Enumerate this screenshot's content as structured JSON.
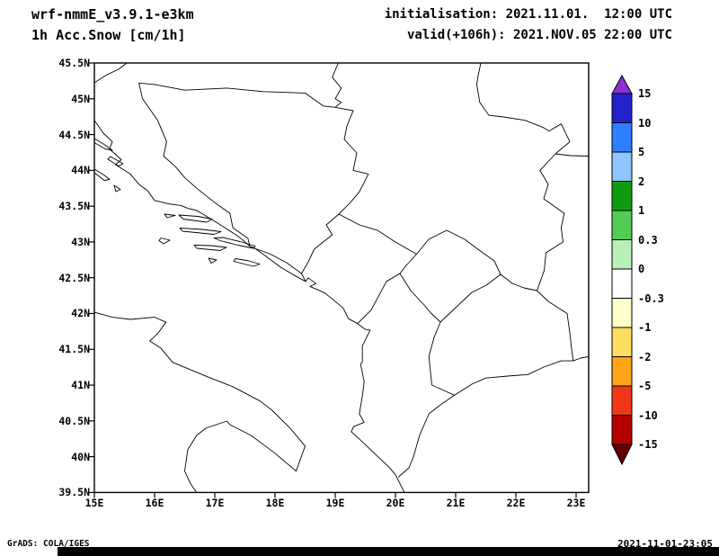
{
  "header": {
    "model_line": "wrf-nmmE_v3.9.1-e3km",
    "field_line": "1h Acc.Snow [cm/1h]",
    "init_line": "initialisation: 2021.11.01.  12:00 UTC",
    "valid_line": "valid(+106h): 2021.NOV.05 22:00 UTC"
  },
  "map": {
    "lat_labels": [
      "45.5N",
      "45N",
      "44.5N",
      "44N",
      "43.5N",
      "43N",
      "42.5N",
      "42N",
      "41.5N",
      "41N",
      "40.5N",
      "40N",
      "39.5N"
    ],
    "lon_labels": [
      "15E",
      "16E",
      "17E",
      "18E",
      "19E",
      "20E",
      "21E",
      "22E",
      "23E"
    ]
  },
  "colorbar": {
    "labels": [
      "15",
      "10",
      "5",
      "2",
      "1",
      "0.3",
      "0",
      "-0.3",
      "-1",
      "-2",
      "-5",
      "-10",
      "-15"
    ],
    "arrow_top_color": "#8f2fd0",
    "segment_colors": [
      "#2222cc",
      "#2e7fff",
      "#8ec6ff",
      "#0e9c0e",
      "#52cc52",
      "#b8f0b8",
      "#ffffff",
      "#ffffc9",
      "#ffdf60",
      "#ffa317",
      "#f03818",
      "#b30000"
    ],
    "arrow_bottom_color": "#660000"
  },
  "footer": {
    "credit": "GrADS: COLA/IGES",
    "timestamp": "2021-11-01-23:05"
  },
  "chart_data": {
    "type": "map",
    "title": "1h Acc.Snow [cm/1h]",
    "model": "wrf-nmmE_v3.9.1-e3km",
    "initialisation": "2021.11.01. 12:00 UTC",
    "valid": "(+106h) 2021.NOV.05 22:00 UTC",
    "lon_range_deg_e": [
      15,
      23.2
    ],
    "lat_range_deg_n": [
      39.5,
      45.5
    ],
    "lon_ticks": [
      "15E",
      "16E",
      "17E",
      "18E",
      "19E",
      "20E",
      "21E",
      "22E",
      "23E"
    ],
    "lat_ticks": [
      "45.5N",
      "45N",
      "44.5N",
      "44N",
      "43.5N",
      "43N",
      "42.5N",
      "42N",
      "41.5N",
      "41N",
      "40.5N",
      "40N",
      "39.5N"
    ],
    "colorbar_levels": [
      15,
      10,
      5,
      2,
      1,
      0.3,
      0,
      -0.3,
      -1,
      -2,
      -5,
      -10,
      -15
    ],
    "shaded_field_visible": false
  }
}
